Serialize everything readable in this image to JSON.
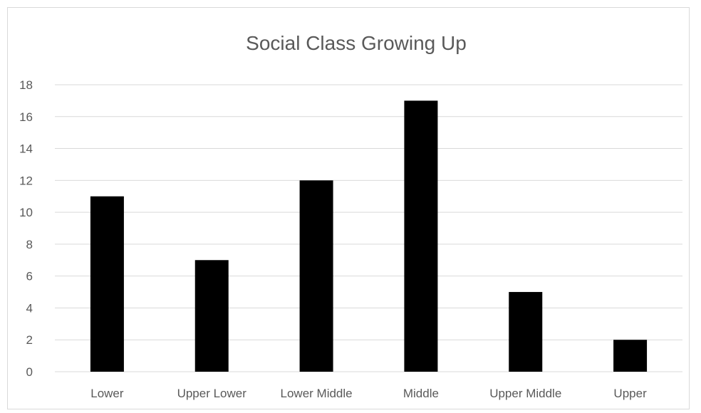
{
  "chart_data": {
    "type": "bar",
    "title": "Social Class Growing Up",
    "categories": [
      "Lower",
      "Upper Lower",
      "Lower Middle",
      "Middle",
      "Upper Middle",
      "Upper"
    ],
    "values": [
      11,
      7,
      12,
      17,
      5,
      2
    ],
    "xlabel": "",
    "ylabel": "",
    "ylim": [
      0,
      18
    ],
    "yticks": [
      0,
      2,
      4,
      6,
      8,
      10,
      12,
      14,
      16,
      18
    ],
    "grid": true,
    "legend": "none",
    "bar_color": "#000000",
    "grid_color": "#d9d9d9",
    "text_color": "#595959"
  }
}
